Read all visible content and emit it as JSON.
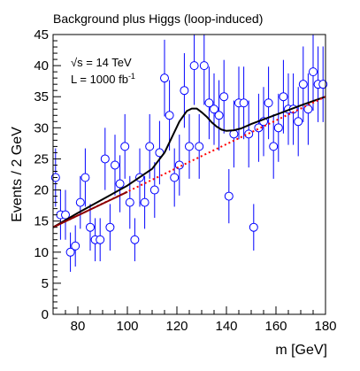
{
  "chart_data": {
    "type": "scatter",
    "title": "Background plus Higgs (loop-induced)",
    "xlabel": "m [GeV]",
    "ylabel": "Events / 2 GeV",
    "xlim": [
      70,
      180
    ],
    "ylim": [
      0,
      45
    ],
    "x_ticks": [
      80,
      100,
      120,
      140,
      160,
      180
    ],
    "y_ticks": [
      0,
      5,
      10,
      15,
      20,
      25,
      30,
      35,
      40,
      45
    ],
    "grid": false,
    "legend": "none",
    "annotations": {
      "energy_root": "√",
      "energy_rest": "s = 14 TeV",
      "lumi_main": "L = 1000 fb",
      "lumi_sup": "-1"
    },
    "series": [
      {
        "type": "scatter_errorbars",
        "color": "#0000ff",
        "x": [
          71,
          73,
          75,
          77,
          79,
          81,
          83,
          85,
          87,
          89,
          91,
          93,
          95,
          97,
          99,
          101,
          103,
          105,
          107,
          109,
          111,
          113,
          115,
          117,
          119,
          121,
          123,
          125,
          127,
          129,
          131,
          133,
          135,
          137,
          139,
          141,
          143,
          145,
          147,
          149,
          151,
          153,
          155,
          157,
          159,
          161,
          163,
          165,
          167,
          169,
          171,
          173,
          175,
          177,
          179
        ],
        "y": [
          22,
          16,
          16,
          10,
          11,
          18,
          22,
          14,
          12,
          12,
          25,
          14,
          24,
          21,
          27,
          18,
          12,
          22,
          18,
          27,
          20,
          26,
          38,
          32,
          22,
          24,
          36,
          27,
          40,
          27,
          40,
          34,
          33,
          32,
          35,
          19,
          29,
          34,
          34,
          29,
          14,
          30,
          31,
          34,
          27,
          30,
          35,
          33,
          33,
          31,
          37,
          33,
          39,
          37,
          37
        ]
      },
      {
        "name": "",
        "type": "line",
        "color": "#000000",
        "x": [
          70,
          80,
          90,
          100,
          110,
          115,
          118,
          121,
          124,
          126,
          128,
          130,
          132,
          134,
          136,
          138,
          140,
          143,
          146,
          150,
          160,
          170,
          180
        ],
        "y": [
          14,
          16.3,
          18.5,
          20.7,
          23.4,
          26.0,
          28.5,
          31.0,
          32.7,
          33.1,
          33.1,
          32.5,
          31.8,
          30.9,
          30.2,
          29.7,
          29.5,
          29.6,
          29.9,
          30.6,
          32.1,
          33.6,
          35
        ]
      },
      {
        "name": "",
        "type": "dotted-line",
        "color": "#ff0000",
        "x": [
          70,
          180
        ],
        "y": [
          14,
          35
        ]
      },
      {
        "name": "",
        "type": "line",
        "color": "#8b0000",
        "x": [
          70,
          100
        ],
        "y": [
          14,
          19.7
        ]
      }
    ]
  }
}
